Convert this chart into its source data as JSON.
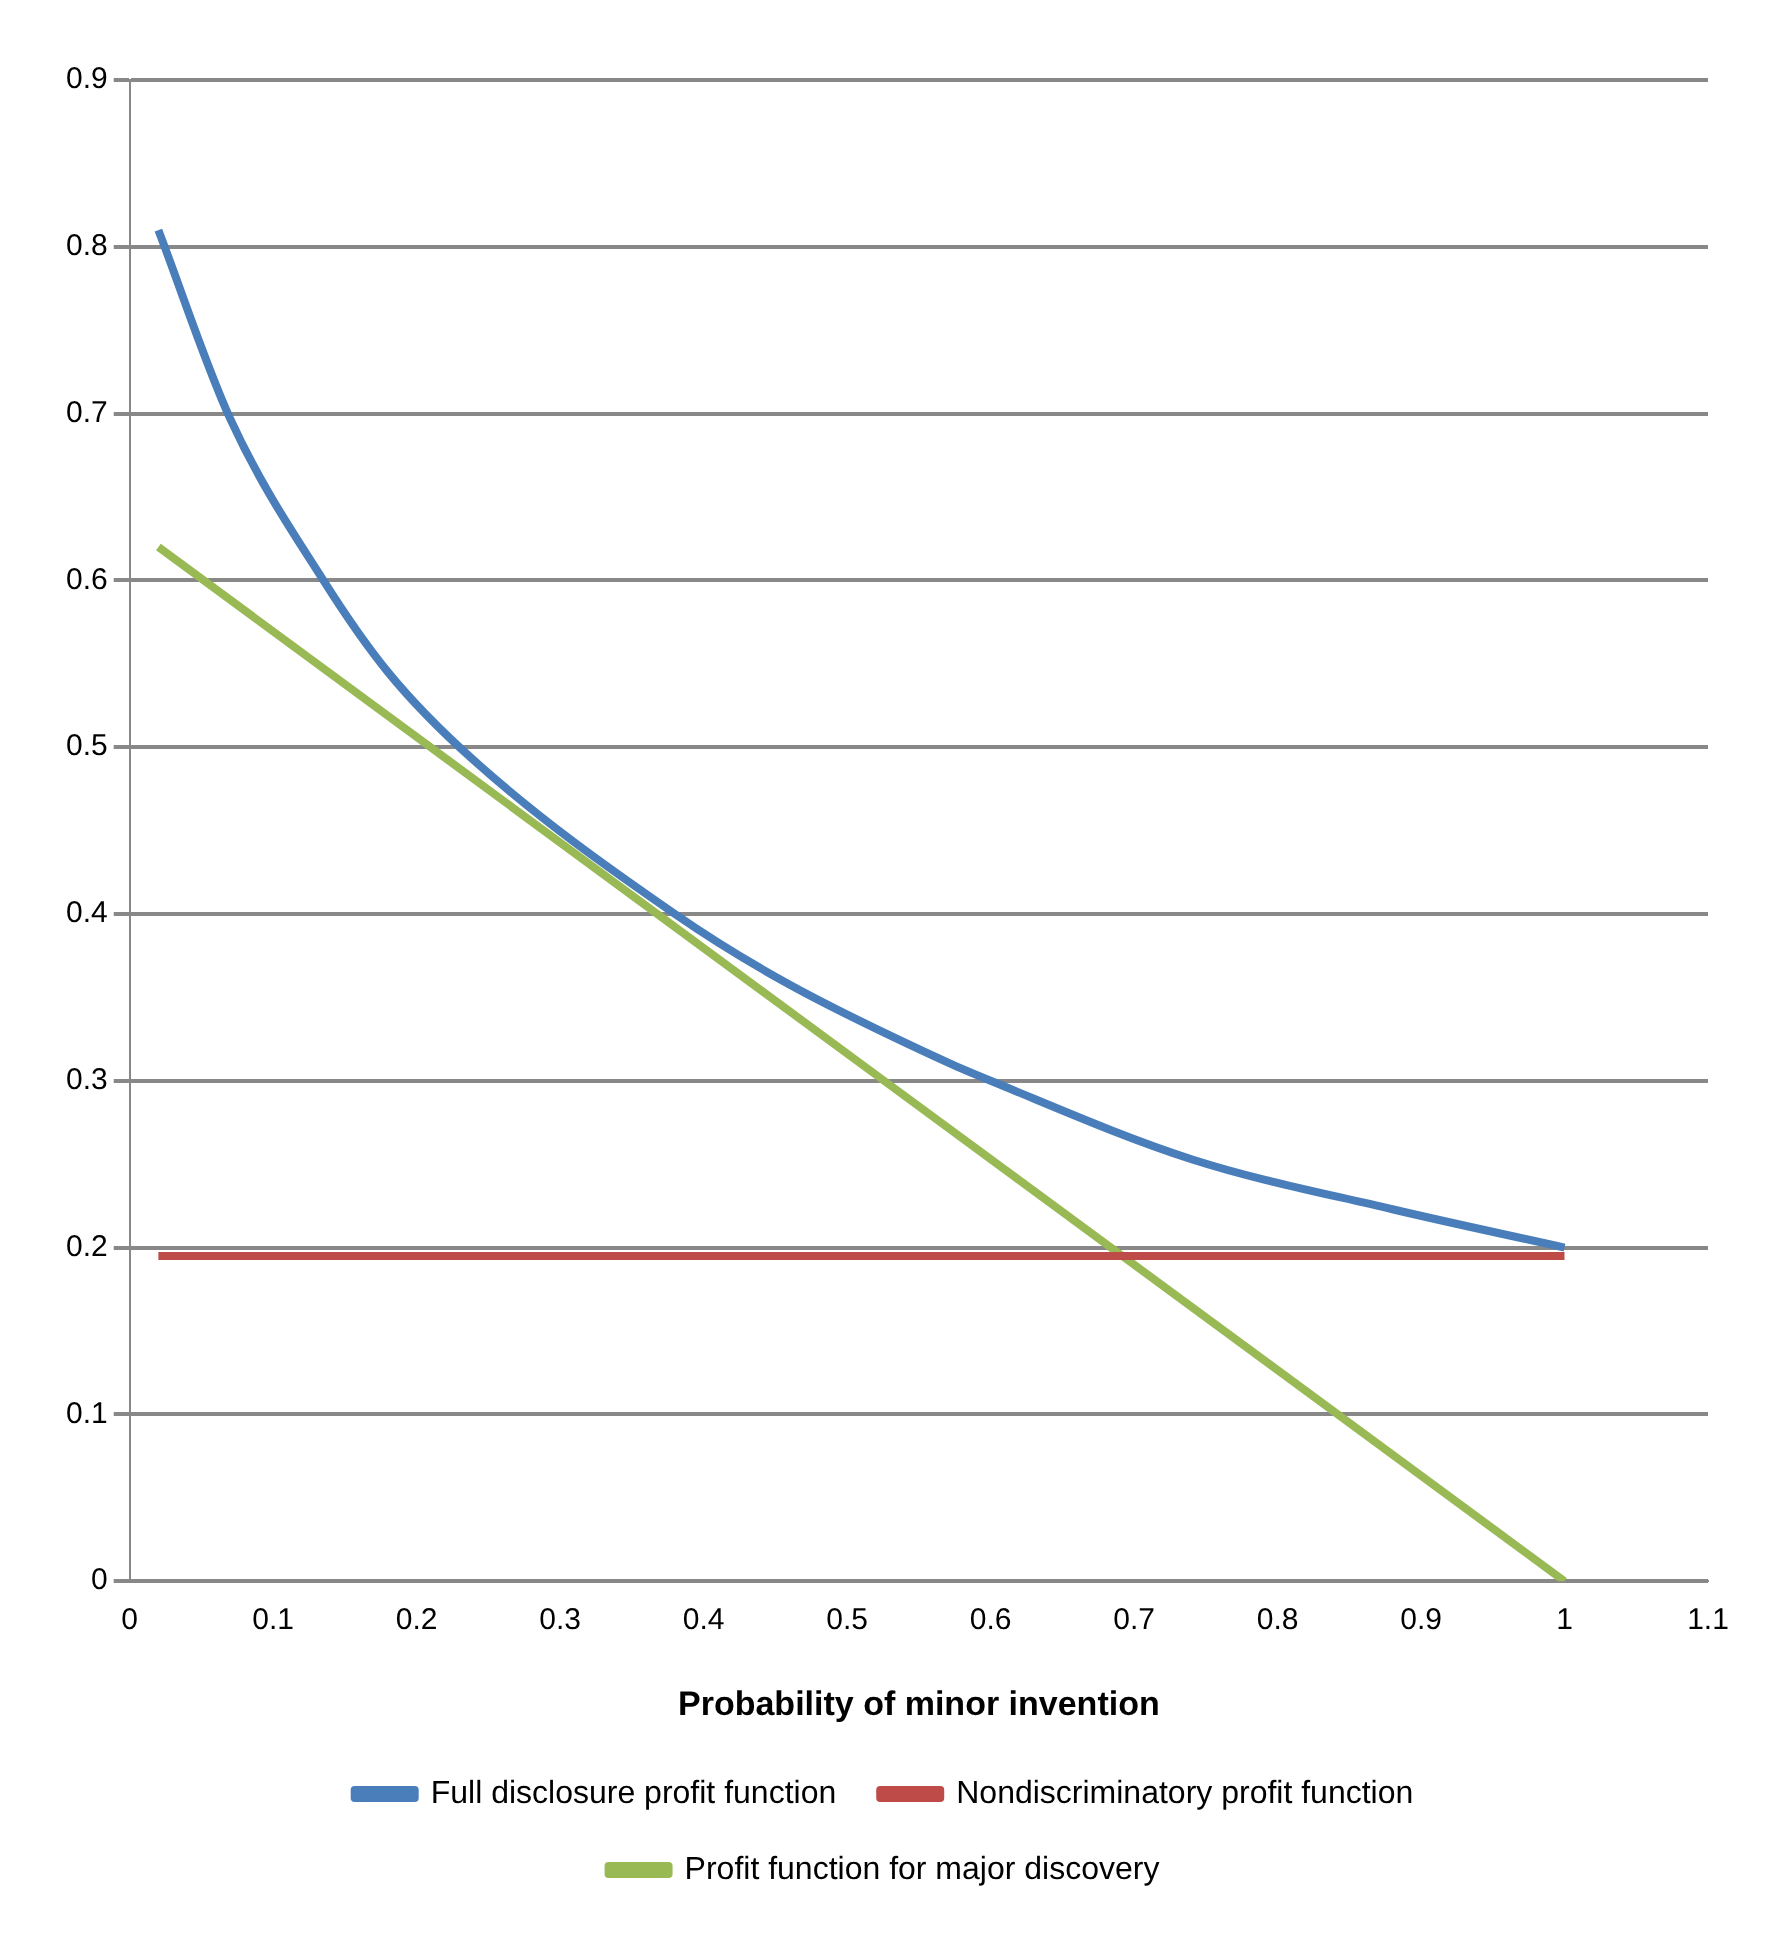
{
  "chart_data": {
    "type": "line",
    "xlabel": "Probability of minor invention",
    "xlim": [
      0,
      1.1
    ],
    "xticks": [
      0,
      0.1,
      0.2,
      0.3,
      0.4,
      0.5,
      0.6,
      0.7,
      0.8,
      0.9,
      1,
      1.1
    ],
    "ylim": [
      0,
      0.9
    ],
    "yticks": [
      0,
      0.1,
      0.2,
      0.3,
      0.4,
      0.5,
      0.6,
      0.7,
      0.8,
      0.9
    ],
    "grid": "y",
    "legend": "bottom",
    "marker": "none",
    "series": [
      {
        "name": "Full disclosure profit function",
        "color": "#4a7ebb",
        "x": [
          0.02,
          0.07,
          0.135,
          0.18,
          0.24,
          0.38,
          0.455,
          0.57,
          0.6,
          0.74,
          0.88,
          1
        ],
        "values": [
          0.81,
          0.697,
          0.6,
          0.545,
          0.492,
          0.4,
          0.36,
          0.311,
          0.3,
          0.253,
          0.223,
          0.2
        ]
      },
      {
        "name": "Nondiscriminatory profit function",
        "color": "#be4b48",
        "x": [
          0.02,
          1
        ],
        "values": [
          0.195,
          0.195
        ]
      },
      {
        "name": "Profit function for major discovery",
        "color": "#98b954",
        "x": [
          0.02,
          1
        ],
        "values": [
          0.62,
          0
        ]
      }
    ]
  }
}
